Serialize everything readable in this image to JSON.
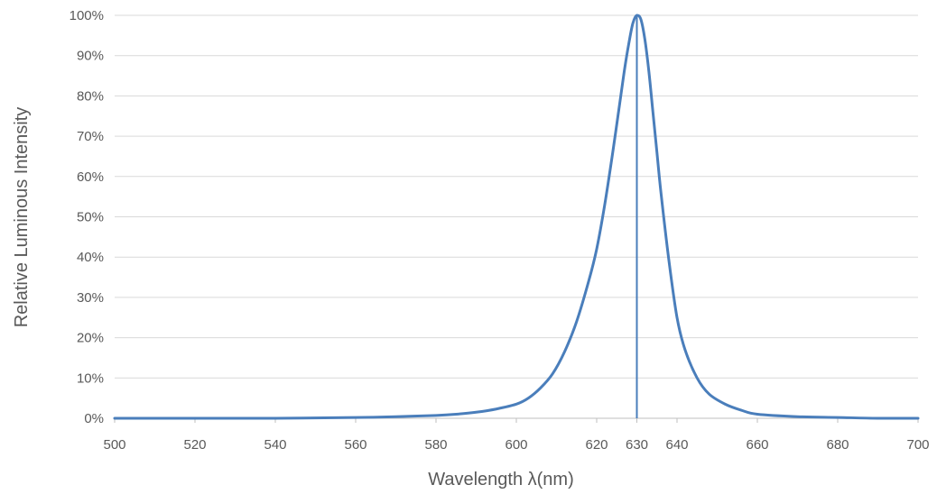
{
  "chart_data": {
    "type": "line",
    "title": "",
    "xlabel": "Wavelength λ(nm)",
    "ylabel": "Relative Luminous Intensity",
    "xlim": [
      500,
      700
    ],
    "ylim": [
      0,
      100
    ],
    "x_ticks": [
      500,
      520,
      540,
      560,
      580,
      600,
      620,
      630,
      640,
      660,
      680,
      700
    ],
    "y_ticks": [
      "0%",
      "10%",
      "20%",
      "30%",
      "40%",
      "50%",
      "60%",
      "70%",
      "80%",
      "90%",
      "100%"
    ],
    "grid": "horizontal",
    "peak_marker_x": 630,
    "series_color": "#4a7ebb",
    "series": [
      {
        "x": [
          500,
          520,
          540,
          560,
          570,
          580,
          585,
          590,
          595,
          600,
          603,
          606,
          609,
          612,
          615,
          618,
          620,
          622,
          624,
          626,
          627,
          628,
          629,
          630,
          631,
          632,
          633,
          634,
          635,
          636,
          638,
          640,
          642,
          645,
          648,
          652,
          656,
          660,
          670,
          680,
          690,
          700
        ],
        "y": [
          0,
          0,
          0,
          0.2,
          0.4,
          0.7,
          1,
          1.5,
          2.3,
          3.5,
          5,
          7.5,
          11,
          16.5,
          24,
          34,
          42,
          53,
          66,
          80,
          87,
          93,
          98,
          100,
          99,
          94,
          86,
          76,
          66,
          56,
          39,
          25,
          17,
          10,
          6,
          3.5,
          2,
          1,
          0.4,
          0.2,
          0,
          0
        ]
      }
    ]
  }
}
